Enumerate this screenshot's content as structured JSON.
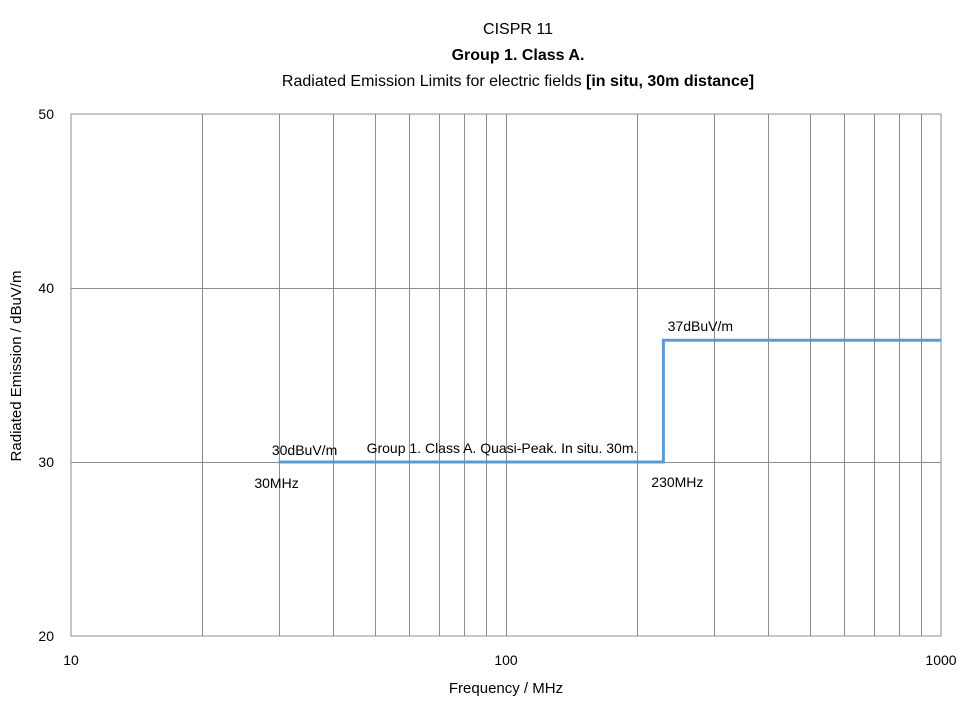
{
  "chart_data": {
    "type": "line",
    "title": {
      "line1": "CISPR 11",
      "line2": "Group 1. Class A.",
      "line3_normal": "Radiated Emission Limits for electric fields ",
      "line3_bold": "[in situ, 30m distance]"
    },
    "xlabel": "Frequency / MHz",
    "ylabel": "Radiated Emission / dBuV/m",
    "x_scale": "log",
    "xlim": [
      10,
      1000
    ],
    "ylim": [
      20,
      50
    ],
    "x_ticks": [
      10,
      100,
      1000
    ],
    "y_ticks": [
      20,
      30,
      40,
      50
    ],
    "grid": true,
    "series": [
      {
        "name": "Group 1. Class A. Quasi-Peak. In situ. 30m.",
        "color": "#5B9BD5",
        "x": [
          30,
          230,
          230,
          1000
        ],
        "y": [
          30,
          30,
          37,
          37
        ]
      }
    ],
    "annotations": [
      {
        "text": "30dBuV/m",
        "x": 30,
        "y": 30
      },
      {
        "text": "30MHz",
        "x": 30,
        "y": 30
      },
      {
        "text": "230MHz",
        "x": 230,
        "y": 30
      },
      {
        "text": "37dBuV/m",
        "x": 230,
        "y": 37
      }
    ]
  }
}
